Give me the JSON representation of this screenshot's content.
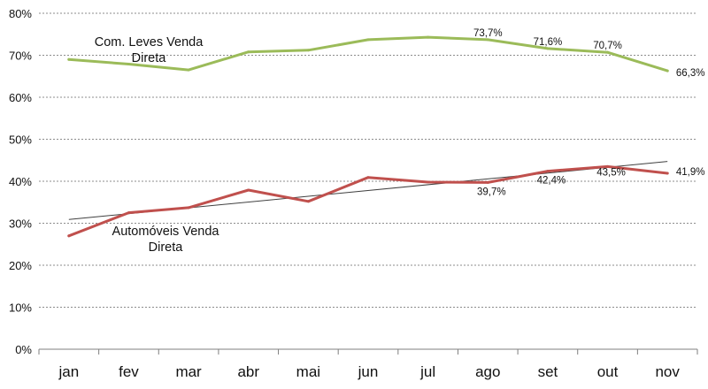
{
  "chart_data": {
    "type": "line",
    "categories": [
      "jan",
      "fev",
      "mar",
      "abr",
      "mai",
      "jun",
      "jul",
      "ago",
      "set",
      "out",
      "nov"
    ],
    "ylim": [
      0,
      80
    ],
    "yticks": [
      0,
      10,
      20,
      30,
      40,
      50,
      60,
      70,
      80
    ],
    "ytick_format": "percent",
    "grid": "horizontal dashed",
    "legend": "inline labels",
    "series": [
      {
        "name": "Com. Leves Venda Direta",
        "name_lines": [
          "Com. Leves Venda",
          "Direta"
        ],
        "color": "#9BBB59",
        "values": [
          69.0,
          67.9,
          66.5,
          70.8,
          71.2,
          73.7,
          74.3,
          73.7,
          71.6,
          70.7,
          66.3
        ],
        "data_labels": [
          {
            "index": 7,
            "text": "73,7%"
          },
          {
            "index": 8,
            "text": "71,6%"
          },
          {
            "index": 9,
            "text": "70,7%"
          },
          {
            "index": 10,
            "text": "66,3%"
          }
        ]
      },
      {
        "name": "Automóveis Venda Direta",
        "name_lines": [
          "Automóveis Venda",
          "Direta"
        ],
        "color": "#C0504D",
        "values": [
          27.0,
          32.5,
          33.7,
          37.9,
          35.2,
          40.9,
          39.8,
          39.7,
          42.4,
          43.5,
          41.9
        ],
        "data_labels": [
          {
            "index": 7,
            "text": "39,7%"
          },
          {
            "index": 8,
            "text": "42,4%"
          },
          {
            "index": 9,
            "text": "43,5%"
          },
          {
            "index": 10,
            "text": "41,9%"
          }
        ]
      }
    ],
    "trendline": {
      "series": "Automóveis Venda Direta",
      "type": "linear",
      "color": "#404040",
      "start": 30.9,
      "end": 44.7
    }
  }
}
